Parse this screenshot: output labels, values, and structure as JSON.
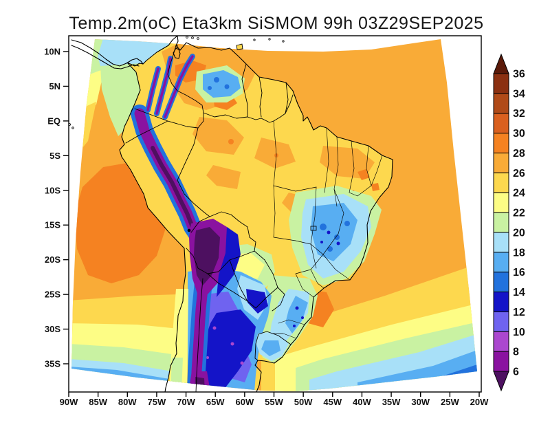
{
  "title": "Temp.2m(oC) Eta3km SiSMOM 99h 03Z29SEP2025",
  "map": {
    "x_axis": {
      "ticks": [
        "90W",
        "85W",
        "80W",
        "75W",
        "70W",
        "65W",
        "60W",
        "55W",
        "50W",
        "45W",
        "40W",
        "35W",
        "30W",
        "25W",
        "20W"
      ]
    },
    "y_axis": {
      "ticks": [
        "10N",
        "5N",
        "EQ",
        "5S",
        "10S",
        "15S",
        "20S",
        "25S",
        "30S",
        "35S"
      ]
    }
  },
  "colorbar": {
    "labels": [
      "36",
      "34",
      "32",
      "30",
      "28",
      "26",
      "24",
      "22",
      "20",
      "18",
      "16",
      "14",
      "12",
      "10",
      "8",
      "6"
    ],
    "segments": [
      {
        "range": "above 36",
        "shape": "triangle-up",
        "color": "#5b1a09"
      },
      {
        "range": "34-36",
        "color": "#8b3011"
      },
      {
        "range": "32-34",
        "color": "#b04a18"
      },
      {
        "range": "30-32",
        "color": "#da601f"
      },
      {
        "range": "28-30",
        "color": "#f58221"
      },
      {
        "range": "26-28",
        "color": "#f9ab37"
      },
      {
        "range": "24-26",
        "color": "#fdd84e"
      },
      {
        "range": "22-24",
        "color": "#fdfd85"
      },
      {
        "range": "20-22",
        "color": "#c9f2a2"
      },
      {
        "range": "18-20",
        "color": "#a8e0f8"
      },
      {
        "range": "16-18",
        "color": "#58aef2"
      },
      {
        "range": "14-16",
        "color": "#2272dd"
      },
      {
        "range": "12-14",
        "color": "#1414c8"
      },
      {
        "range": "10-12",
        "color": "#6f63f0"
      },
      {
        "range": "8-10",
        "color": "#ab47cf"
      },
      {
        "range": "6-8",
        "color": "#8a12a0"
      },
      {
        "range": "below 6",
        "shape": "triangle-down",
        "color": "#4d1060"
      }
    ]
  }
}
